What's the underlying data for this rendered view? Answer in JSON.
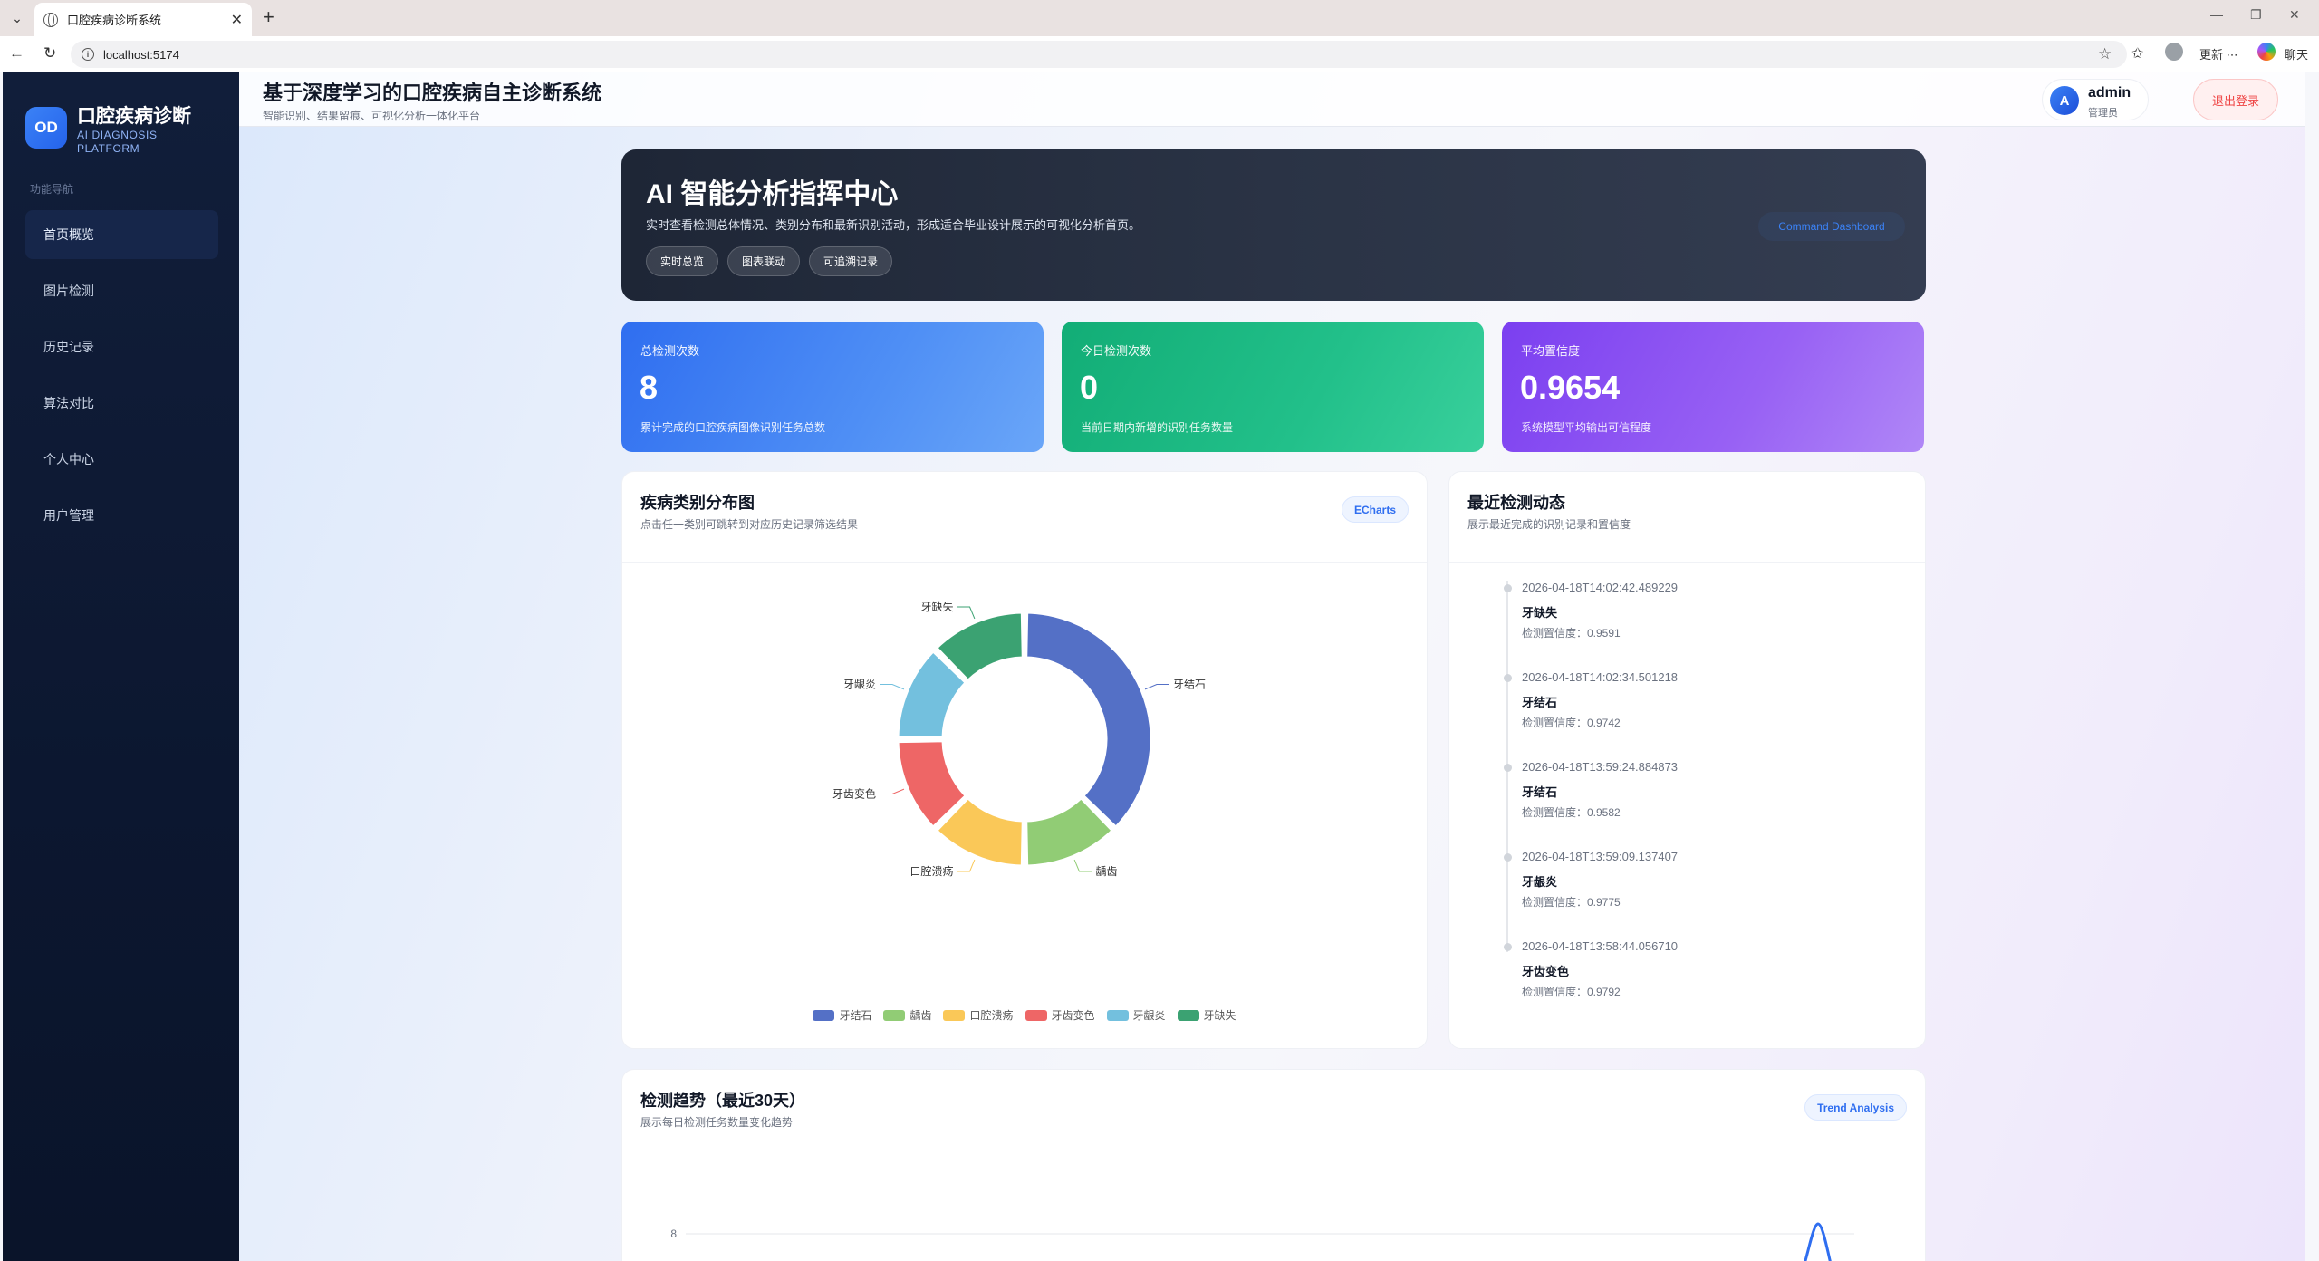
{
  "browser": {
    "tab_title": "口腔疾病诊断系统",
    "url": "localhost:5174",
    "update_label": "更新",
    "chat_label": "聊天"
  },
  "sidebar": {
    "logo_initials": "OD",
    "brand_title": "口腔疾病诊断",
    "brand_subtitle": "AI DIAGNOSIS PLATFORM",
    "nav_caption": "功能导航",
    "items": [
      {
        "label": "首页概览",
        "active": true
      },
      {
        "label": "图片检测"
      },
      {
        "label": "历史记录"
      },
      {
        "label": "算法对比"
      },
      {
        "label": "个人中心"
      },
      {
        "label": "用户管理"
      }
    ]
  },
  "header": {
    "title": "基于深度学习的口腔疾病自主诊断系统",
    "subtitle": "智能识别、结果留痕、可视化分析一体化平台",
    "user": {
      "avatar": "A",
      "name": "admin",
      "role": "管理员"
    },
    "logout_label": "退出登录"
  },
  "hero": {
    "title": "AI 智能分析指挥中心",
    "description": "实时查看检测总体情况、类别分布和最新识别活动，形成适合毕业设计展示的可视化分析首页。",
    "tags": [
      "实时总览",
      "图表联动",
      "可追溯记录"
    ],
    "pill": "Command Dashboard"
  },
  "stats": [
    {
      "label": "总检测次数",
      "value": "8",
      "desc": "累计完成的口腔疾病图像识别任务总数"
    },
    {
      "label": "今日检测次数",
      "value": "0",
      "desc": "当前日期内新增的识别任务数量"
    },
    {
      "label": "平均置信度",
      "value": "0.9654",
      "desc": "系统模型平均输出可信程度"
    }
  ],
  "distribution": {
    "title": "疾病类别分布图",
    "subtitle": "点击任一类别可跳转到对应历史记录筛选结果",
    "badge": "ECharts"
  },
  "chart_data": [
    {
      "type": "pie",
      "variant": "donut",
      "categories": [
        "牙结石",
        "龋齿",
        "口腔溃疡",
        "牙齿变色",
        "牙龈炎",
        "牙缺失"
      ],
      "values": [
        3,
        1,
        1,
        1,
        1,
        1
      ],
      "colors": [
        "#5470c6",
        "#91cc75",
        "#fac858",
        "#ee6666",
        "#73c0de",
        "#3ba272"
      ],
      "legend_position": "bottom"
    },
    {
      "type": "line",
      "title": "检测趋势（最近30天）",
      "y_ticks": [
        8
      ],
      "series": [
        {
          "values": []
        }
      ]
    }
  ],
  "feed": {
    "title": "最近检测动态",
    "subtitle": "展示最近完成的识别记录和置信度",
    "items": [
      {
        "time": "2026-04-18T14:02:42.489229",
        "name": "牙缺失",
        "conf": "检测置信度：0.9591"
      },
      {
        "time": "2026-04-18T14:02:34.501218",
        "name": "牙结石",
        "conf": "检测置信度：0.9742"
      },
      {
        "time": "2026-04-18T13:59:24.884873",
        "name": "牙结石",
        "conf": "检测置信度：0.9582"
      },
      {
        "time": "2026-04-18T13:59:09.137407",
        "name": "牙龈炎",
        "conf": "检测置信度：0.9775"
      },
      {
        "time": "2026-04-18T13:58:44.056710",
        "name": "牙齿变色",
        "conf": "检测置信度：0.9792"
      }
    ]
  },
  "trend": {
    "title": "检测趋势（最近30天）",
    "subtitle": "展示每日检测任务数量变化趋势",
    "badge": "Trend Analysis",
    "y_tick": "8"
  }
}
